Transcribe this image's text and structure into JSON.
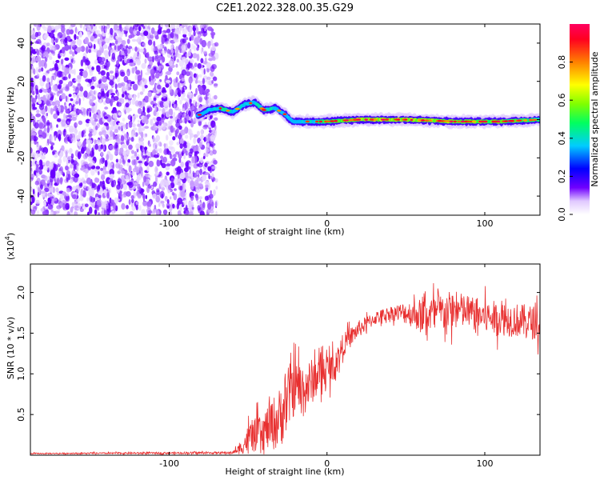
{
  "figure": {
    "title": "C2E1.2022.328.00.35.G29"
  },
  "chart_data": [
    {
      "type": "heatmap",
      "xlabel": "Height of straight line (km)",
      "ylabel": "Frequency (Hz)",
      "xlim": [
        -188,
        135
      ],
      "ylim": [
        -50,
        50
      ],
      "x_ticks": [
        {
          "value": -100,
          "label": "-100"
        },
        {
          "value": 0,
          "label": "0"
        },
        {
          "value": 100,
          "label": "100"
        }
      ],
      "y_ticks": [
        {
          "value": -40,
          "label": "-40"
        },
        {
          "value": -20,
          "label": "-20"
        },
        {
          "value": 0,
          "label": "0"
        },
        {
          "value": 20,
          "label": "20"
        },
        {
          "value": 40,
          "label": "40"
        }
      ],
      "colorbar": {
        "label": "Normalized spectral amplitude",
        "range": [
          0,
          1
        ],
        "ticks": [
          {
            "value": 0.0,
            "label": "0.0"
          },
          {
            "value": 0.2,
            "label": "0.2"
          },
          {
            "value": 0.4,
            "label": "0.4"
          },
          {
            "value": 0.6,
            "label": "0.6"
          },
          {
            "value": 0.8,
            "label": "0.8"
          }
        ]
      },
      "noise_region": {
        "x_range": [
          -188,
          -75
        ],
        "y_range": [
          -50,
          50
        ],
        "amplitude": 0.1
      },
      "signal_trace": {
        "x": [
          -82,
          -75,
          -68,
          -60,
          -52,
          -46,
          -40,
          -33,
          -27,
          -22,
          -10,
          0,
          20,
          50,
          80,
          110,
          135
        ],
        "frequency": [
          2,
          5,
          6,
          4,
          8,
          9,
          5,
          6,
          3,
          -1,
          -1,
          -1,
          0,
          0,
          -1,
          -1,
          0
        ],
        "amplitude": [
          0.2,
          0.4,
          0.6,
          0.5,
          0.5,
          0.45,
          0.55,
          0.5,
          0.4,
          0.35,
          0.5,
          0.7,
          0.85,
          0.85,
          0.8,
          0.75,
          0.6
        ]
      },
      "grid": false
    },
    {
      "type": "line",
      "xlabel": "Height of straight line (km)",
      "ylabel": "SNR (10 * v/v)",
      "multiplier_label": "(x10",
      "multiplier_exponent": "4",
      "multiplier_close": ")",
      "xlim": [
        -188,
        135
      ],
      "ylim": [
        0,
        2.35
      ],
      "x_ticks": [
        {
          "value": -100,
          "label": "-100"
        },
        {
          "value": 0,
          "label": "0"
        },
        {
          "value": 100,
          "label": "100"
        }
      ],
      "y_ticks": [
        {
          "value": 0.5,
          "label": "0.5"
        },
        {
          "value": 1.0,
          "label": "1.0"
        },
        {
          "value": 1.5,
          "label": "1.5"
        },
        {
          "value": 2.0,
          "label": "2.0"
        }
      ],
      "series": [
        {
          "color": "#e83030",
          "envelope": {
            "x": [
              -188,
              -60,
              -55,
              -50,
              -40,
              -30,
              -25,
              -20,
              -15,
              -10,
              -5,
              0,
              5,
              10,
              20,
              30,
              40,
              50,
              60,
              70,
              80,
              90,
              100,
              110,
              120,
              135
            ],
            "mean": [
              0.02,
              0.03,
              0.08,
              0.2,
              0.3,
              0.45,
              0.7,
              0.85,
              0.8,
              0.9,
              1.0,
              1.05,
              1.1,
              1.35,
              1.55,
              1.68,
              1.75,
              1.75,
              1.72,
              1.74,
              1.78,
              1.76,
              1.7,
              1.68,
              1.66,
              1.62
            ],
            "spread": [
              0.01,
              0.02,
              0.1,
              0.25,
              0.35,
              0.55,
              0.6,
              0.45,
              0.5,
              0.4,
              0.35,
              0.3,
              0.25,
              0.2,
              0.15,
              0.12,
              0.12,
              0.2,
              0.3,
              0.35,
              0.35,
              0.3,
              0.3,
              0.3,
              0.3,
              0.3
            ]
          }
        }
      ],
      "grid": false
    }
  ]
}
